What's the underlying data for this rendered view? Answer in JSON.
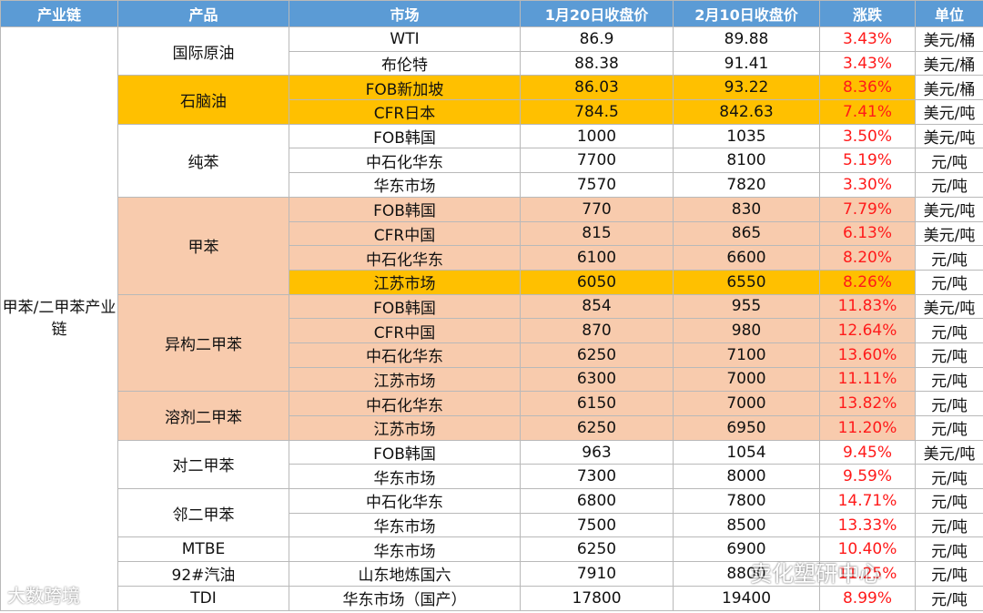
{
  "headers": [
    "产业链",
    "产品",
    "市场",
    "1月20日收盘价",
    "2月10日收盘价",
    "涨跌",
    "单位"
  ],
  "chain_label": "甲苯/二甲苯产业链",
  "products": [
    {
      "name": "国际原油",
      "rows": [
        {
          "market": "WTI",
          "p1": "86.9",
          "p2": "89.88",
          "chg": "3.43%",
          "unit": "美元/桶"
        },
        {
          "market": "布伦特",
          "p1": "88.38",
          "p2": "91.41",
          "chg": "3.43%",
          "unit": "美元/桶"
        }
      ]
    },
    {
      "name": "石脑油",
      "rows": [
        {
          "market": "FOB新加坡",
          "p1": "86.03",
          "p2": "93.22",
          "chg": "8.36%",
          "unit": "美元/桶"
        },
        {
          "market": "CFR日本",
          "p1": "784.5",
          "p2": "842.63",
          "chg": "7.41%",
          "unit": "美元/吨"
        }
      ]
    },
    {
      "name": "纯苯",
      "rows": [
        {
          "market": "FOB韩国",
          "p1": "1000",
          "p2": "1035",
          "chg": "3.50%",
          "unit": "美元/吨"
        },
        {
          "market": "中石化华东",
          "p1": "7700",
          "p2": "8100",
          "chg": "5.19%",
          "unit": "元/吨"
        },
        {
          "market": "华东市场",
          "p1": "7570",
          "p2": "7820",
          "chg": "3.30%",
          "unit": "元/吨"
        }
      ]
    },
    {
      "name": "甲苯",
      "rows": [
        {
          "market": "FOB韩国",
          "p1": "770",
          "p2": "830",
          "chg": "7.79%",
          "unit": "美元/吨"
        },
        {
          "market": "CFR中国",
          "p1": "815",
          "p2": "865",
          "chg": "6.13%",
          "unit": "美元/吨"
        },
        {
          "market": "中石化华东",
          "p1": "6100",
          "p2": "6600",
          "chg": "8.20%",
          "unit": "元/吨"
        },
        {
          "market": "江苏市场",
          "p1": "6050",
          "p2": "6550",
          "chg": "8.26%",
          "unit": "元/吨"
        }
      ]
    },
    {
      "name": "异构二甲苯",
      "rows": [
        {
          "market": "FOB韩国",
          "p1": "854",
          "p2": "955",
          "chg": "11.83%",
          "unit": "美元/吨"
        },
        {
          "market": "CFR中国",
          "p1": "870",
          "p2": "980",
          "chg": "12.64%",
          "unit": "元/吨"
        },
        {
          "market": "中石化华东",
          "p1": "6250",
          "p2": "7100",
          "chg": "13.60%",
          "unit": "元/吨"
        },
        {
          "market": "江苏市场",
          "p1": "6300",
          "p2": "7000",
          "chg": "11.11%",
          "unit": "元/吨"
        }
      ]
    },
    {
      "name": "溶剂二甲苯",
      "rows": [
        {
          "market": "中石化华东",
          "p1": "6150",
          "p2": "7000",
          "chg": "13.82%",
          "unit": "元/吨"
        },
        {
          "market": "江苏市场",
          "p1": "6250",
          "p2": "6950",
          "chg": "11.20%",
          "unit": "元/吨"
        }
      ]
    },
    {
      "name": "对二甲苯",
      "rows": [
        {
          "market": "FOB韩国",
          "p1": "963",
          "p2": "1054",
          "chg": "9.45%",
          "unit": "美元/吨"
        },
        {
          "market": "华东市场",
          "p1": "7300",
          "p2": "8000",
          "chg": "9.59%",
          "unit": "元/吨"
        }
      ]
    },
    {
      "name": "邻二甲苯",
      "rows": [
        {
          "market": "中石化华东",
          "p1": "6800",
          "p2": "7800",
          "chg": "14.71%",
          "unit": "元/吨"
        },
        {
          "market": "华东市场",
          "p1": "7500",
          "p2": "8500",
          "chg": "13.33%",
          "unit": "元/吨"
        }
      ]
    },
    {
      "name": "MTBE",
      "rows": [
        {
          "market": "华东市场",
          "p1": "6250",
          "p2": "6900",
          "chg": "10.40%",
          "unit": "元/吨"
        }
      ]
    },
    {
      "name": "92#汽油",
      "rows": [
        {
          "market": "山东地炼国六",
          "p1": "7910",
          "p2": "8800",
          "chg": "11.25%",
          "unit": "元/吨"
        }
      ]
    },
    {
      "name": "TDI",
      "rows": [
        {
          "market": "华东市场（国产）",
          "p1": "17800",
          "p2": "19400",
          "chg": "8.99%",
          "unit": "元/吨"
        }
      ]
    }
  ],
  "watermarks": {
    "left": "大数跨境",
    "right": "卖化塑研中心"
  },
  "colors": {
    "header": "#5b9bd5",
    "highlight": "#ffc000",
    "group": "#f8cbad",
    "change_text": "#ff1a1a"
  }
}
